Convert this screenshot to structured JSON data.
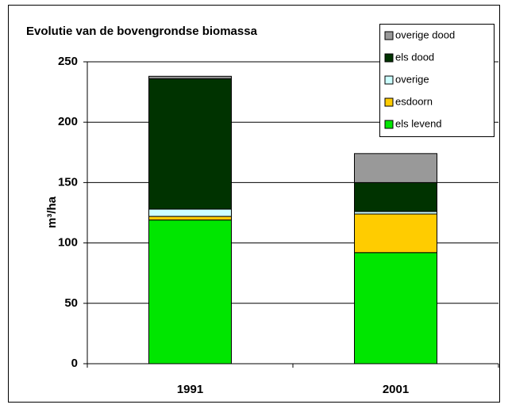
{
  "chart_data": {
    "type": "stacked_bar",
    "title": "Evolutie van de bovengrondse biomassa",
    "y_label": "m³/ha",
    "categories": [
      "1991",
      "2001"
    ],
    "series": [
      {
        "name": "els levend",
        "color": "#00e600",
        "values": [
          119,
          92
        ]
      },
      {
        "name": "esdoorn",
        "color": "#ffcc00",
        "values": [
          3,
          32
        ]
      },
      {
        "name": "overige",
        "color": "#ccffff",
        "values": [
          6,
          2
        ]
      },
      {
        "name": "els dood",
        "color": "#003300",
        "values": [
          108,
          24
        ]
      },
      {
        "name": "overige dood",
        "color": "#999999",
        "values": [
          2,
          24
        ]
      }
    ],
    "ylim": [
      0,
      250
    ],
    "yticks": [
      0,
      50,
      100,
      150,
      200,
      250
    ],
    "grid": true,
    "legend": "top-right"
  }
}
